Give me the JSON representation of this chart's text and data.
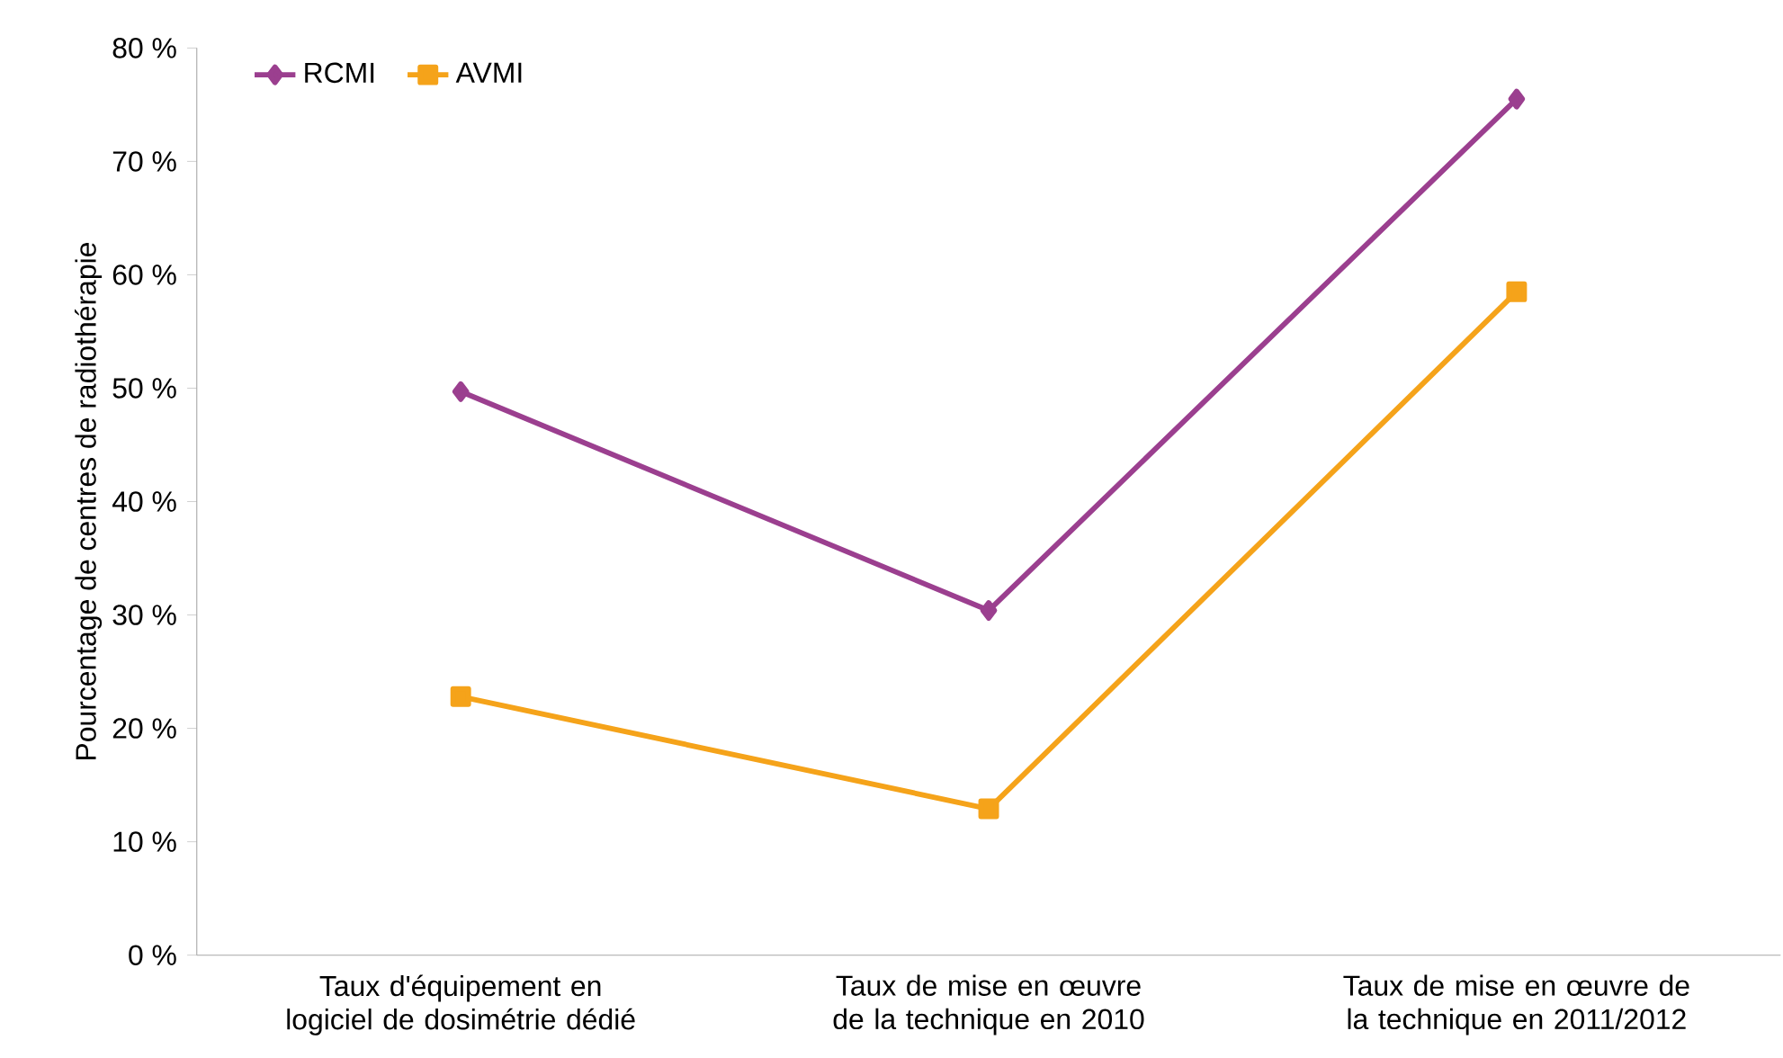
{
  "chart_data": {
    "type": "line",
    "ylabel": "Pourcentage de centres de radiothérapie",
    "categories": [
      "Taux d'équipement en logiciel de dosimétrie dédié",
      "Taux de mise en œuvre de la technique en 2010",
      "Taux de mise en œuvre de la technique en 2011/2012"
    ],
    "series": [
      {
        "name": "RCMI",
        "color": "#9b3f8f",
        "marker": "diamond",
        "values": [
          49.7,
          30.4,
          75.5
        ]
      },
      {
        "name": "AVMI",
        "color": "#f5a31a",
        "marker": "square",
        "values": [
          22.8,
          12.9,
          58.5
        ]
      }
    ],
    "ylim": [
      0,
      80
    ],
    "yticks": [
      {
        "value": 0,
        "label": "0 %"
      },
      {
        "value": 10,
        "label": "10 %"
      },
      {
        "value": 20,
        "label": "20 %"
      },
      {
        "value": 30,
        "label": "30 %"
      },
      {
        "value": 40,
        "label": "40 %"
      },
      {
        "value": 50,
        "label": "50 %"
      },
      {
        "value": 60,
        "label": "60 %"
      },
      {
        "value": 70,
        "label": "70 %"
      },
      {
        "value": 80,
        "label": "80 %"
      }
    ],
    "grid": false,
    "legend": "top left",
    "line_style": "solid"
  }
}
